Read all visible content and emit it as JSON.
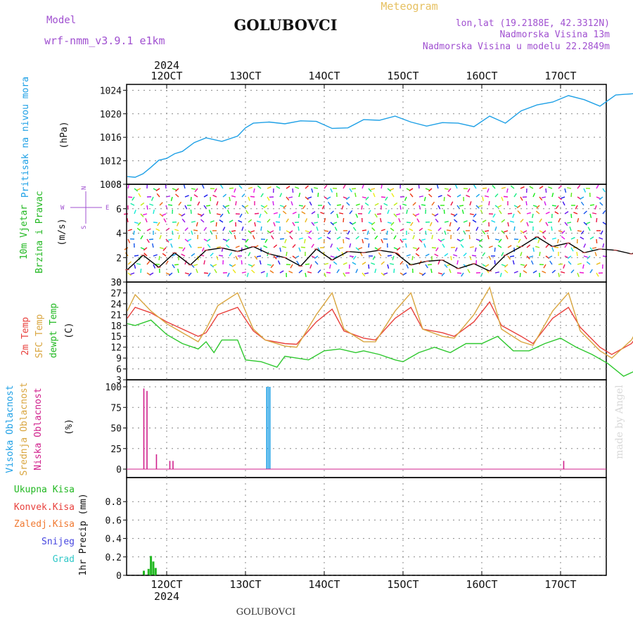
{
  "header": {
    "model_label": "Model",
    "model_name": "wrf-nmm_v3.9.1 e1km",
    "station": "GOLUBOVCI",
    "product": "Meteogram",
    "lonlat": "lon,lat (19.2188E, 42.3312N)",
    "elevation": "Nadmorska Visina 13m",
    "model_elevation": "Nadmorska Visina u modelu 22.2849m",
    "footer_station": "GOLUBOVCI",
    "credit": "made by Angel",
    "year": "2024"
  },
  "colors": {
    "pressure": "#1ea0e6",
    "temp2m": "#e8403c",
    "sfc_temp": "#d9a640",
    "dewpoint": "#2ec82e",
    "high_cloud": "#1ea0e6",
    "mid_cloud": "#d9a640",
    "low_cloud": "#d0208c",
    "rain_total": "#22b822",
    "rain_conv": "#e8403c",
    "freezing": "#f07830",
    "snow": "#4646e0",
    "hail": "#30c8c8",
    "header_purple": "#a050d0",
    "header_gold": "#e6c060"
  },
  "x_ticks": [
    "12OCT",
    "13OCT",
    "14OCT",
    "15OCT",
    "16OCT",
    "17OCT"
  ],
  "chart_data": [
    {
      "type": "line",
      "title": "Pritisak na nivou mora",
      "ylabel": "(hPa)",
      "ylim": [
        1008,
        1025
      ],
      "yticks": [
        "1008",
        "1012",
        "1016",
        "1020",
        "1024"
      ],
      "grid": true,
      "x_unit": "days since 12OCT 00UTC",
      "series": [
        {
          "name": "Pritisak na nivou mora",
          "x": [
            -0.5,
            -0.4,
            -0.3,
            -0.2,
            -0.1,
            0,
            0.1,
            0.2,
            0.35,
            0.5,
            0.7,
            0.9,
            1.0,
            1.1,
            1.3,
            1.5,
            1.7,
            1.9,
            2.1,
            2.3,
            2.5,
            2.7,
            2.9,
            3.1,
            3.3,
            3.5,
            3.7,
            3.9,
            4.1,
            4.3,
            4.5,
            4.7,
            4.9,
            5.1,
            5.3,
            5.5,
            5.7,
            5.9,
            6.1,
            6.2,
            6.3
          ],
          "values": [
            1009.3,
            1009.2,
            1009.8,
            1010.9,
            1012.1,
            1012.4,
            1013.2,
            1013.6,
            1015.1,
            1015.9,
            1015.3,
            1016.2,
            1017.6,
            1018.4,
            1018.6,
            1018.3,
            1018.8,
            1018.7,
            1017.5,
            1017.6,
            1019.0,
            1018.9,
            1019.6,
            1018.6,
            1017.9,
            1018.5,
            1018.4,
            1017.8,
            1019.6,
            1018.4,
            1020.5,
            1021.5,
            1022.0,
            1023.1,
            1022.4,
            1021.3,
            1023.2,
            1023.4,
            1023.7,
            1023.3,
            1022.3
          ]
        }
      ]
    },
    {
      "type": "line",
      "title": "10m Vjetar Brzina i Pravac",
      "ylabel": "(m/s)",
      "ylim": [
        0,
        8
      ],
      "yticks": [
        "0",
        "2",
        "4",
        "6",
        "8"
      ],
      "direction_legend": {
        "n": "N",
        "s": "S",
        "e": "E",
        "w": "W"
      },
      "grid": true,
      "series": [
        {
          "name": "10m Vjetar Brzina i Pravac",
          "x": [
            -0.5,
            -0.3,
            -0.1,
            0.1,
            0.3,
            0.5,
            0.7,
            0.9,
            1.1,
            1.3,
            1.5,
            1.7,
            1.9,
            2.1,
            2.3,
            2.5,
            2.7,
            2.9,
            3.1,
            3.3,
            3.5,
            3.7,
            3.9,
            4.1,
            4.3,
            4.5,
            4.7,
            4.9,
            5.1,
            5.3,
            5.5,
            5.7,
            5.9,
            6.1,
            6.3
          ],
          "values": [
            1.0,
            2.2,
            1.2,
            2.4,
            1.4,
            2.6,
            2.8,
            2.5,
            2.9,
            2.3,
            2.0,
            1.3,
            2.7,
            1.8,
            2.5,
            2.4,
            2.6,
            2.4,
            1.4,
            1.7,
            1.8,
            1.1,
            1.5,
            0.9,
            2.2,
            2.9,
            3.7,
            2.9,
            3.2,
            2.4,
            2.7,
            2.6,
            2.3,
            2.8,
            0.6
          ]
        }
      ]
    },
    {
      "type": "line",
      "title": "2m Temp / SFC Temp / dewpt Temp",
      "ylabel": "(C)",
      "ylim": [
        3,
        30
      ],
      "yticks": [
        "3",
        "6",
        "9",
        "12",
        "15",
        "18",
        "21",
        "24",
        "27",
        "30"
      ],
      "grid": true,
      "series": [
        {
          "name": "2m Temp",
          "x": [
            -0.5,
            -0.4,
            -0.2,
            0,
            0.2,
            0.4,
            0.5,
            0.65,
            0.9,
            1.1,
            1.25,
            1.5,
            1.65,
            1.9,
            2.1,
            2.25,
            2.5,
            2.65,
            2.9,
            3.1,
            3.25,
            3.5,
            3.65,
            3.9,
            4.1,
            4.25,
            4.5,
            4.65,
            4.9,
            5.1,
            5.25,
            5.5,
            5.65,
            5.9,
            6.1,
            6.3
          ],
          "values": [
            20,
            23,
            21.5,
            19,
            17,
            15,
            16,
            21,
            23,
            16.5,
            14,
            13,
            12.8,
            19,
            22.5,
            16.5,
            14.5,
            14,
            20,
            23,
            17,
            16,
            15,
            19,
            24.5,
            18,
            15,
            13,
            20,
            23,
            17.5,
            12,
            10,
            13,
            19,
            22.5
          ]
        },
        {
          "name": "SFC Temp",
          "x": [
            -0.5,
            -0.4,
            -0.2,
            0,
            0.2,
            0.4,
            0.5,
            0.65,
            0.9,
            1.1,
            1.25,
            1.5,
            1.65,
            1.9,
            2.1,
            2.25,
            2.5,
            2.65,
            2.9,
            3.1,
            3.25,
            3.5,
            3.65,
            3.9,
            4.1,
            4.25,
            4.5,
            4.65,
            4.9,
            5.1,
            5.25,
            5.5,
            5.65,
            5.9,
            6.1,
            6.3
          ],
          "values": [
            22,
            26.5,
            22,
            18.5,
            16,
            13.5,
            17,
            23.5,
            27,
            17,
            14,
            12.3,
            12,
            21,
            27,
            17,
            13.5,
            13.5,
            22,
            27,
            17,
            15,
            14.5,
            21,
            28.5,
            17,
            13.5,
            12.5,
            22,
            27,
            16.5,
            11,
            9,
            14,
            22,
            26.5
          ]
        },
        {
          "name": "dewpt Temp",
          "x": [
            -0.5,
            -0.4,
            -0.2,
            0,
            0.2,
            0.4,
            0.5,
            0.6,
            0.7,
            0.9,
            1.0,
            1.2,
            1.4,
            1.5,
            1.8,
            2.0,
            2.2,
            2.4,
            2.5,
            2.7,
            2.9,
            3.0,
            3.2,
            3.4,
            3.6,
            3.8,
            4.0,
            4.2,
            4.4,
            4.6,
            4.8,
            5.0,
            5.2,
            5.4,
            5.6,
            5.8,
            6.0,
            6.3
          ],
          "values": [
            18.5,
            18,
            19.5,
            15.5,
            13,
            11.5,
            13.5,
            10.5,
            14,
            14,
            8.5,
            8,
            6.5,
            9.5,
            8.5,
            11,
            11.5,
            10.5,
            11,
            10,
            8.5,
            8,
            10.5,
            12,
            10.5,
            13,
            13,
            15,
            11,
            11,
            13,
            14.5,
            12,
            10,
            7.5,
            4,
            6,
            9
          ]
        }
      ]
    },
    {
      "type": "bar",
      "title": "Visoka / Srednja / Niska Oblacnost",
      "ylabel": "(%)",
      "ylim": [
        0,
        100
      ],
      "yticks": [
        "0",
        "25",
        "50",
        "75",
        "100"
      ],
      "grid": true,
      "series": [
        {
          "name": "Visoka Oblacnost",
          "x": [
            1.27,
            1.29,
            1.31
          ],
          "values": [
            100,
            100,
            100
          ]
        },
        {
          "name": "Niska Oblacnost",
          "x": [
            -0.29,
            -0.25,
            -0.13,
            0.04,
            0.08,
            5.04
          ],
          "values": [
            98,
            95,
            18,
            10,
            10,
            10
          ]
        }
      ]
    },
    {
      "type": "bar",
      "title": "1hr Precip",
      "ylabel": "1hr Precip (mm)",
      "ylim": [
        0,
        1.0
      ],
      "yticks": [
        "0",
        "0.2",
        "0.4",
        "0.6",
        "0.8"
      ],
      "grid": true,
      "legend": [
        "Ukupna Kisa",
        "Konvek.Kisa",
        "Zaledj.Kisa",
        "Snijeg",
        "Grad"
      ],
      "series": [
        {
          "name": "Ukupna Kisa",
          "x": [
            -0.29,
            -0.23,
            -0.2,
            -0.17,
            -0.14
          ],
          "values": [
            0.05,
            0.07,
            0.21,
            0.15,
            0.08
          ]
        }
      ]
    }
  ]
}
